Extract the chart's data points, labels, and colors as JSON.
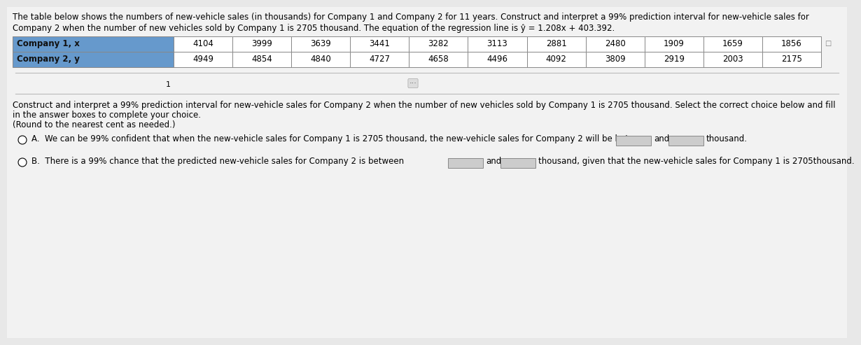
{
  "title_line1": "The table below shows the numbers of new-vehicle sales (in thousands) for Company 1 and Company 2 for 11 years. Construct and interpret a 99% prediction interval for new-vehicle sales for",
  "title_line2": "Company 2 when the number of new vehicles sold by Company 1 is 2705 thousand. The equation of the regression line is ŷ = 1.208x + 403.392.",
  "company1_label": "Company 1, x",
  "company2_label": "Company 2, y",
  "company1_values": [
    4104,
    3999,
    3639,
    3441,
    3282,
    3113,
    2881,
    2480,
    1909,
    1659,
    1856
  ],
  "company2_values": [
    4949,
    4854,
    4840,
    4727,
    4658,
    4496,
    4092,
    3809,
    2919,
    2003,
    2175
  ],
  "question_line1": "Construct and interpret a 99% prediction interval for new-vehicle sales for Company 2 when the number of new vehicles sold by Company 1 is 2705 thousand. Select the correct choice below and fill",
  "question_line2": "in the answer boxes to complete your choice.",
  "question_line3": "(Round to the nearest cent as needed.)",
  "optionA_prefix": "A.  We can be 99% confident that when the new-vehicle sales for Company 1 is 2705 thousand, the new-vehicle sales for Company 2 will be between",
  "optionA_and": "and",
  "optionA_suffix": "thousand.",
  "optionB_prefix": "B.  There is a 99% chance that the predicted new-vehicle sales for Company 2 is between",
  "optionB_and": "and",
  "optionB_suffix": "thousand, given that the new-vehicle sales for Company 1 is 2705thousand.",
  "bg_color": "#e8e8e8",
  "content_bg": "#f0f0f0",
  "table_header_bg": "#6699cc",
  "table_data_bg": "#ffffff",
  "table_border_color": "#888888",
  "text_color": "#000000",
  "sep_color": "#bbbbbb",
  "title_fontsize": 8.5,
  "table_fontsize": 8.5,
  "body_fontsize": 8.5
}
